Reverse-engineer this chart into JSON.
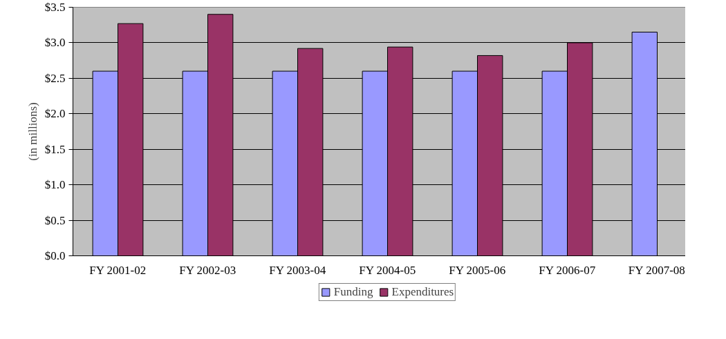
{
  "chart_data": {
    "type": "bar",
    "ylabel": "(in millions)",
    "categories": [
      "FY 2001-02",
      "FY 2002-03",
      "FY 2003-04",
      "FY 2004-05",
      "FY 2005-06",
      "FY 2006-07",
      "FY 2007-08"
    ],
    "series": [
      {
        "name": "Funding",
        "color": "#9999ff",
        "values": [
          2.6,
          2.6,
          2.6,
          2.6,
          2.6,
          2.6,
          3.15
        ]
      },
      {
        "name": "Expenditures",
        "color": "#993366",
        "values": [
          3.27,
          3.4,
          2.92,
          2.94,
          2.82,
          3.0,
          null
        ]
      }
    ],
    "ylim": [
      0,
      3.5
    ],
    "yticks": [
      {
        "value": 0,
        "label": "$0.0"
      },
      {
        "value": 0.5,
        "label": "$0.5"
      },
      {
        "value": 1,
        "label": "$1.0"
      },
      {
        "value": 1.5,
        "label": "$1.5"
      },
      {
        "value": 2,
        "label": "$2.0"
      },
      {
        "value": 2.5,
        "label": "$2.5"
      },
      {
        "value": 3,
        "label": "$3.0"
      },
      {
        "value": 3.5,
        "label": "$3.5"
      }
    ],
    "grid": "y",
    "legend": "bottom"
  }
}
